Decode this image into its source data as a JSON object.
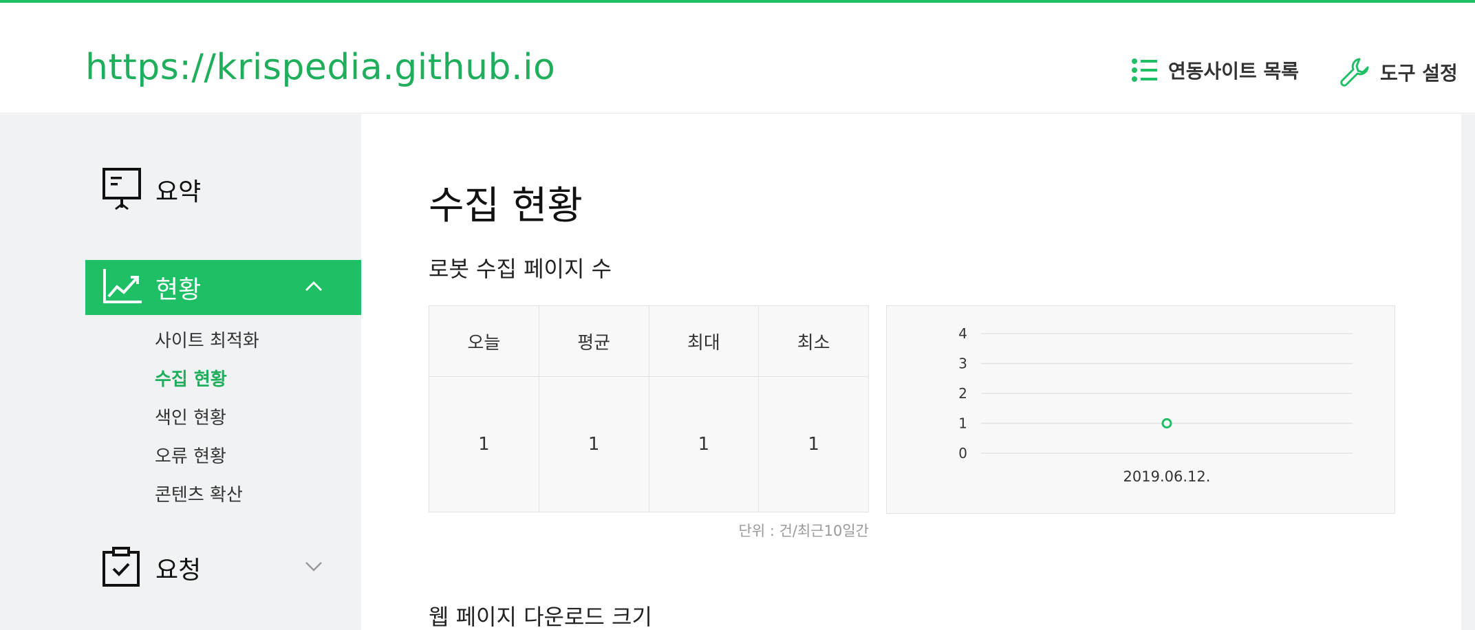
{
  "header": {
    "site_url": "https://krispedia.github.io",
    "linked_sites_label": "연동사이트 목록",
    "tool_settings_label": "도구 설정"
  },
  "sidebar": {
    "summary_label": "요약",
    "status_label": "현황",
    "request_label": "요청",
    "status_items": [
      "사이트 최적화",
      "수집 현황",
      "색인 현황",
      "오류 현황",
      "콘텐츠 확산"
    ],
    "active_item": "수집 현황"
  },
  "main": {
    "page_title": "수집 현황",
    "section1_title": "로봇 수집 페이지 수",
    "section2_title": "웹 페이지 다운로드 크기",
    "stats": {
      "headers": [
        "오늘",
        "평균",
        "최대",
        "최소"
      ],
      "values": [
        "1",
        "1",
        "1",
        "1"
      ]
    },
    "unit_note": "단위 : 건/최근10일간"
  },
  "colors": {
    "accent": "#1fbf66",
    "sidebar_bg": "#f1f2f4"
  },
  "chart_data": {
    "type": "line",
    "title": "",
    "xlabel": "",
    "ylabel": "",
    "categories": [
      "2019.06.12."
    ],
    "series": [
      {
        "name": "로봇 수집 페이지 수",
        "values": [
          1
        ]
      }
    ],
    "ylim": [
      0,
      4
    ],
    "yticks": [
      0,
      1,
      2,
      3,
      4
    ],
    "grid": true
  }
}
